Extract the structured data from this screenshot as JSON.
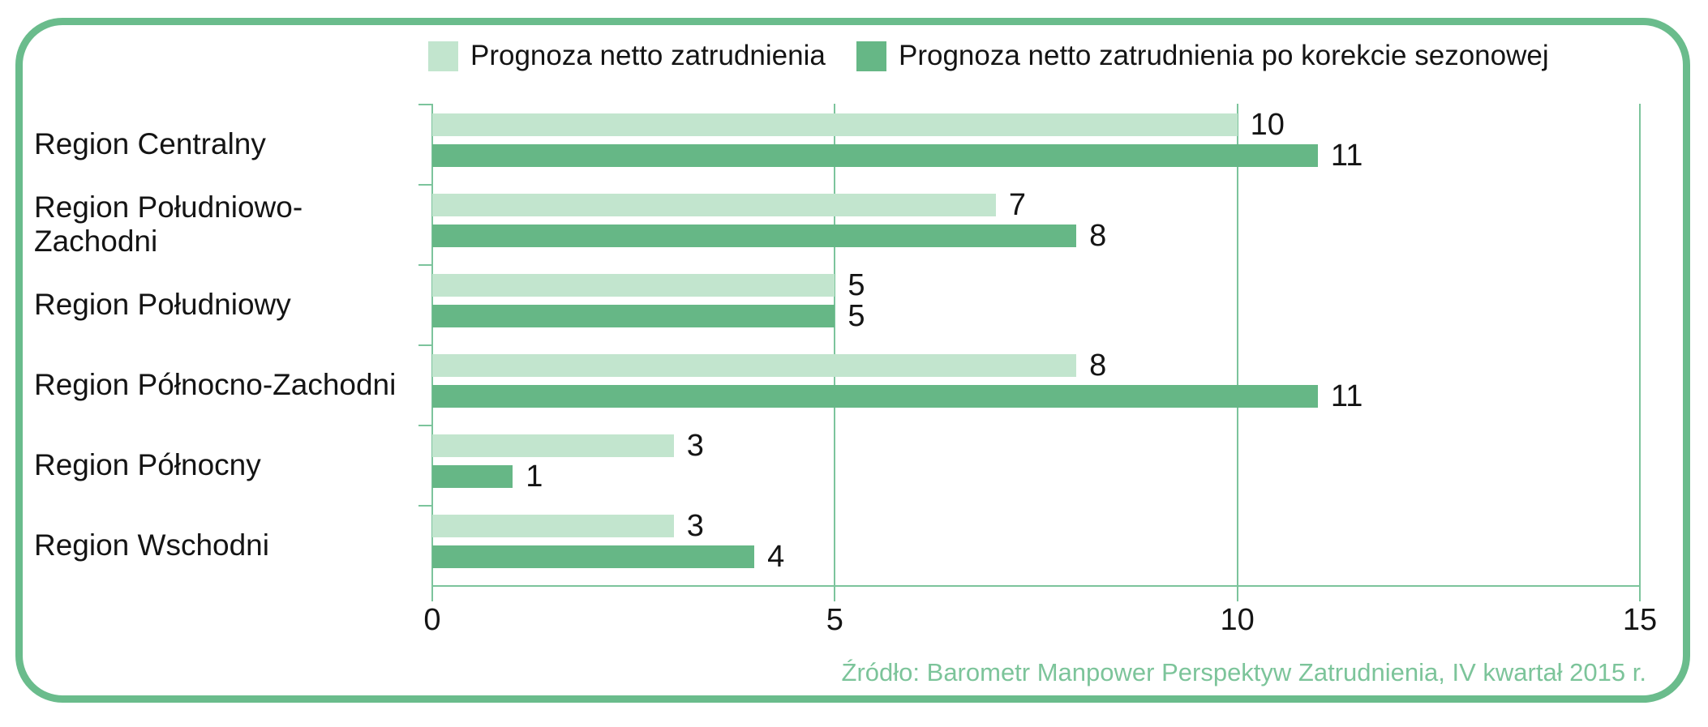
{
  "chart_data": {
    "type": "bar",
    "orientation": "horizontal",
    "title": "",
    "xlabel": "",
    "ylabel": "",
    "categories": [
      "Region Centralny",
      "Region Południowo-Zachodni",
      "Region Południowy",
      "Region Północno-Zachodni",
      "Region Północny",
      "Region Wschodni"
    ],
    "series": [
      {
        "name": "Prognoza netto zatrudnienia",
        "color": "#c2e5ce",
        "values": [
          10,
          7,
          5,
          8,
          3,
          3
        ]
      },
      {
        "name": "Prognoza netto zatrudnienia po korekcie sezonowej",
        "color": "#66b786",
        "values": [
          11,
          8,
          5,
          11,
          1,
          4
        ]
      }
    ],
    "xlim": [
      0,
      15
    ],
    "x_ticks": [
      0,
      5,
      10,
      15
    ],
    "grid": true,
    "legend_position": "top",
    "value_labels": true,
    "source": "Źródło: Barometr Manpower Perspektyw Zatrudnienia, IV kwartał 2015 r."
  },
  "colors": {
    "frame_border": "#6abc8c",
    "gridline": "#7cc49c",
    "light_bar": "#c2e5ce",
    "dark_bar": "#66b786",
    "source_text": "#7cc49a",
    "label_text": "#141414"
  }
}
